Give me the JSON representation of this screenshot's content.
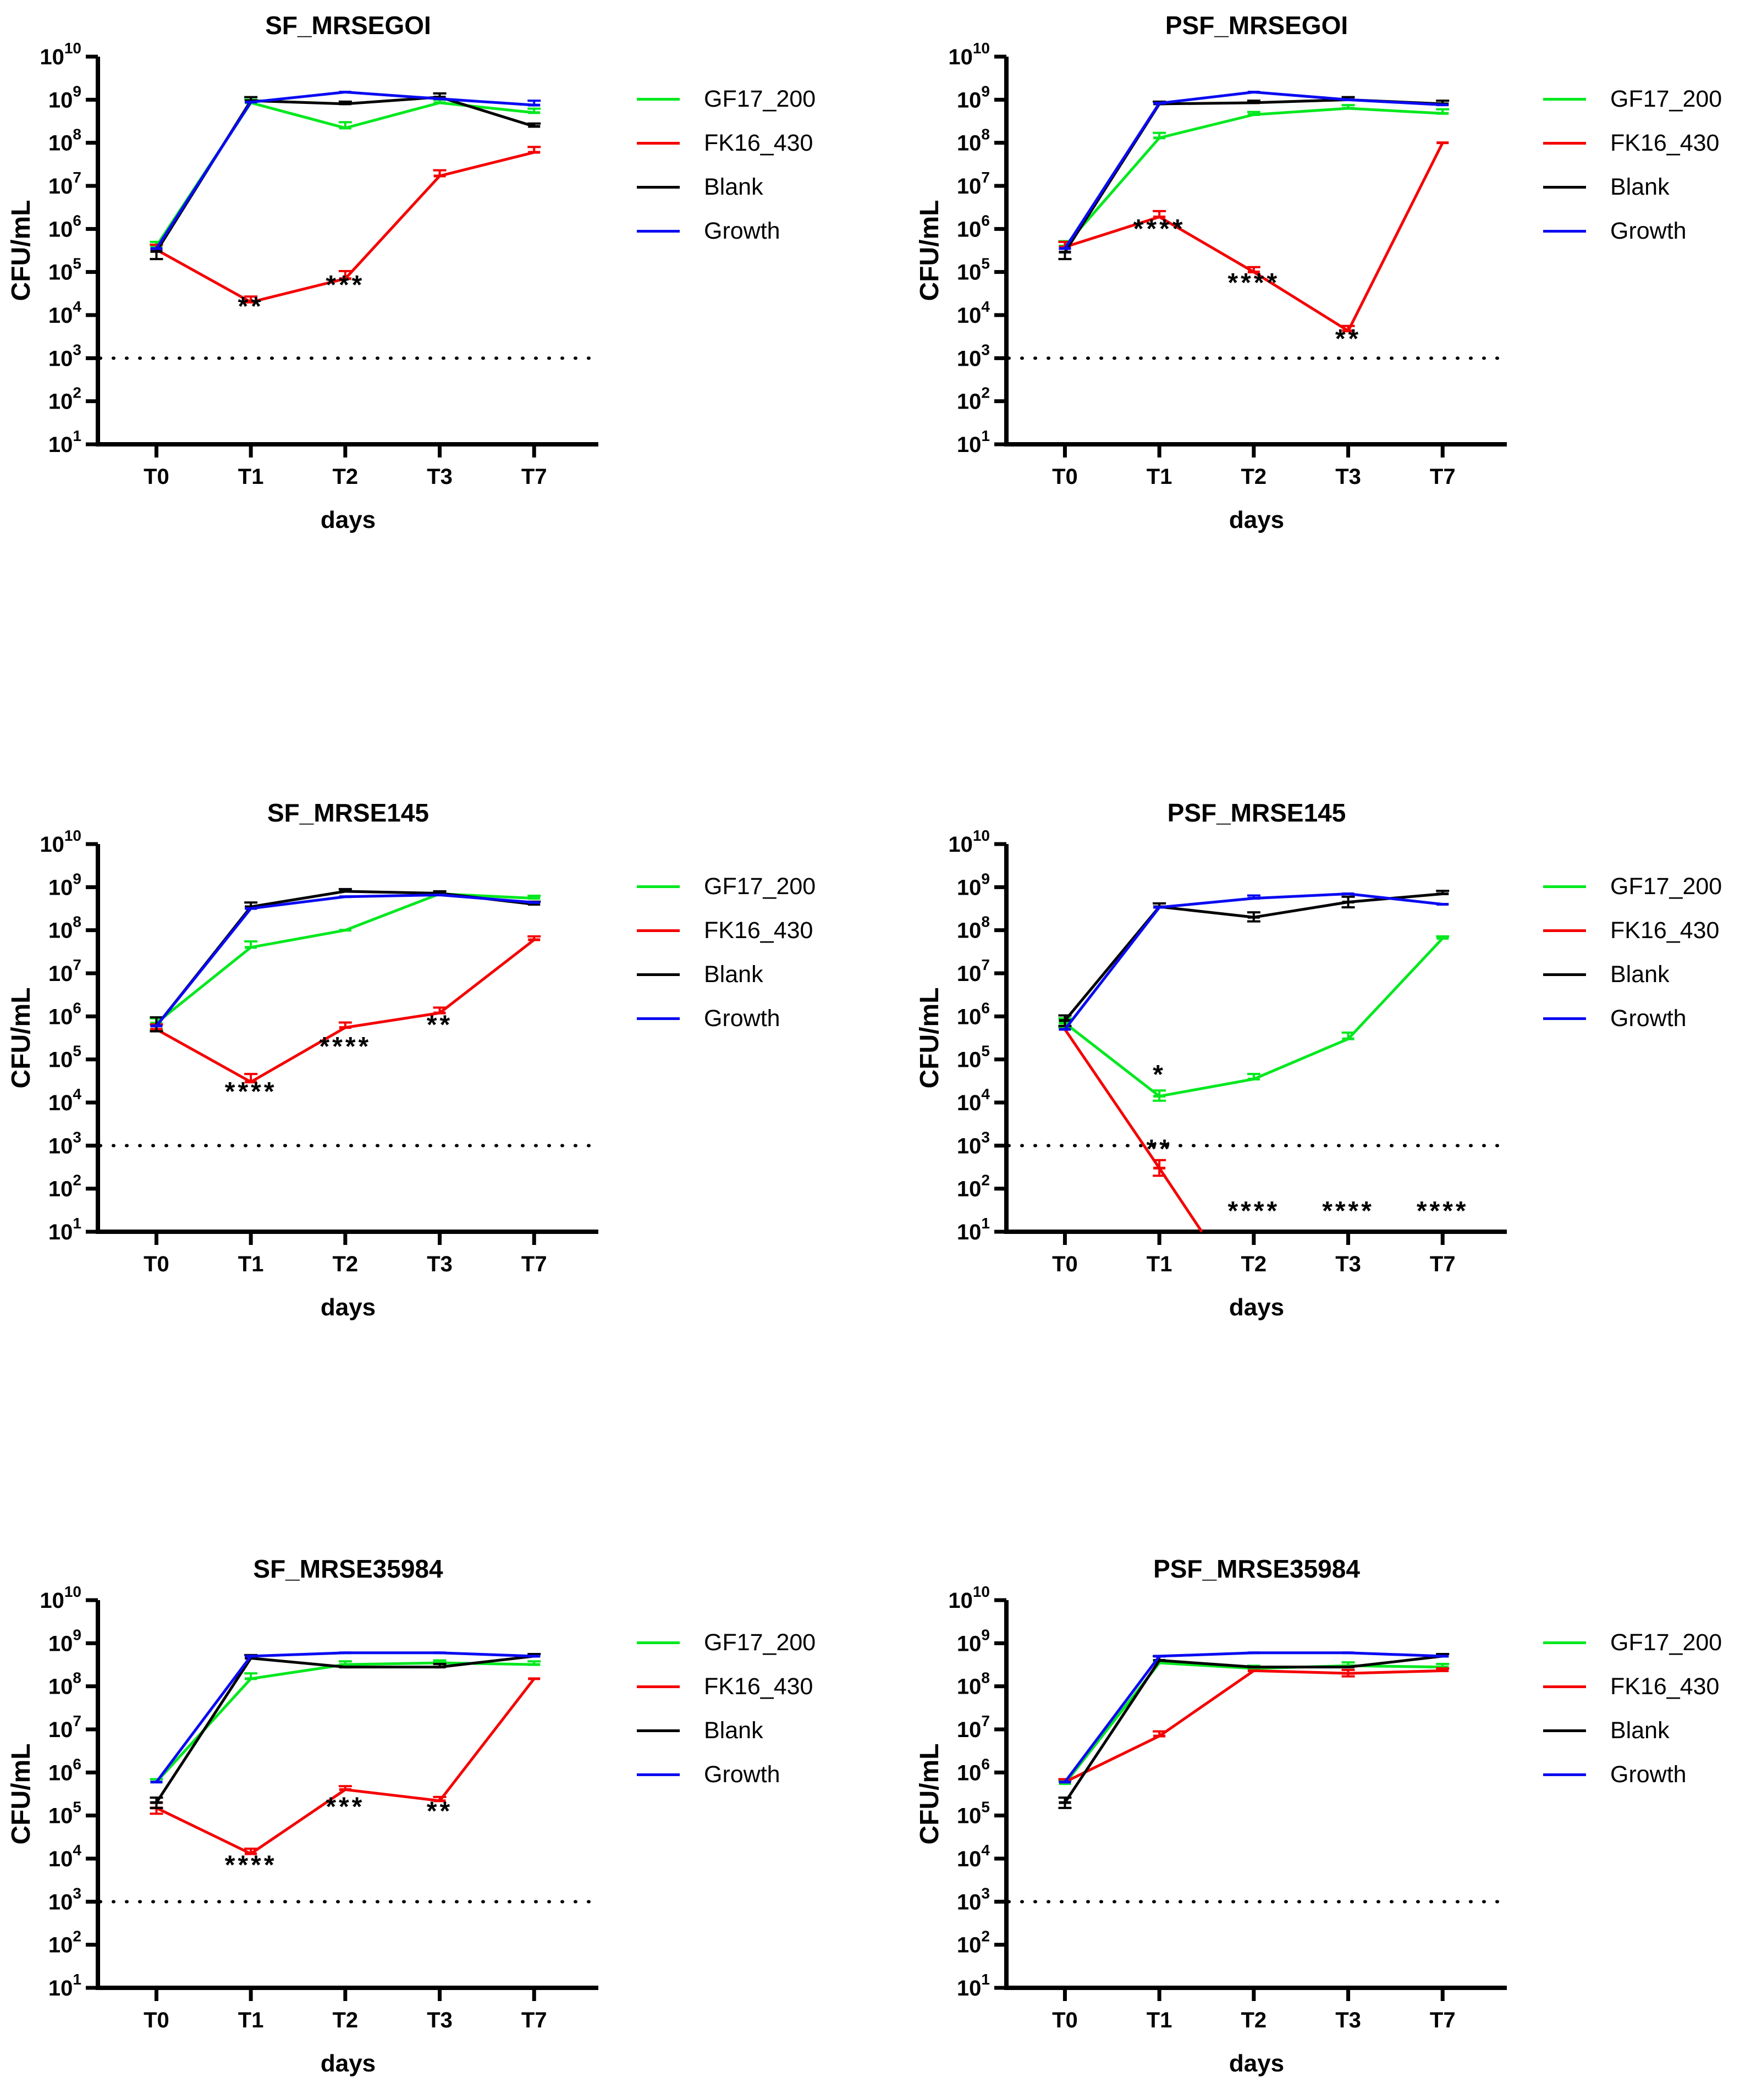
{
  "figure": {
    "x_axis_label": "days",
    "y_axis_label": "CFU/mL",
    "x_ticks": [
      "T0",
      "T1",
      "T2",
      "T3",
      "T7"
    ],
    "y_tick_base": "10",
    "y_tick_exponents": [
      1,
      2,
      3,
      4,
      5,
      6,
      7,
      8,
      9,
      10
    ],
    "ylim": [
      10,
      10000000000
    ],
    "detection_limit": 1000,
    "colors": {
      "GF17_200": "#00e81e",
      "FK16_430": "#f40000",
      "Blank": "#000000",
      "Growth": "#0a0af2"
    },
    "legend": [
      {
        "label": "GF17_200",
        "color": "#00e81e"
      },
      {
        "label": "FK16_430",
        "color": "#f40000"
      },
      {
        "label": "Blank",
        "color": "#000000"
      },
      {
        "label": "Growth",
        "color": "#0a0af2"
      }
    ]
  },
  "chart_data": [
    {
      "type": "line",
      "title": "SF_MRSEGOI",
      "xlabel": "days",
      "ylabel": "CFU/mL",
      "x_categories": [
        "T0",
        "T1",
        "T2",
        "T3",
        "T7"
      ],
      "series": [
        {
          "name": "GF17_200",
          "color": "#00e81e",
          "values": [
            400000.0,
            850000000.0,
            220000000.0,
            850000000.0,
            500000000.0
          ],
          "err_up": [
            500000.0,
            1000000000.0,
            300000000.0,
            1000000000.0,
            620000000.0
          ],
          "err_dn": [
            null,
            null,
            null,
            null,
            null
          ]
        },
        {
          "name": "FK16_430",
          "color": "#f40000",
          "values": [
            330000.0,
            20000.0,
            70000.0,
            17000000.0,
            60000000.0
          ],
          "err_up": [
            430000.0,
            27000.0,
            105000.0,
            23000000.0,
            80000000.0
          ],
          "err_dn": [
            null,
            null,
            null,
            null,
            null
          ]
        },
        {
          "name": "Blank",
          "color": "#000000",
          "values": [
            300000.0,
            950000000.0,
            800000000.0,
            1150000000.0,
            240000000.0
          ],
          "err_up": [
            null,
            1150000000.0,
            900000000.0,
            1400000000.0,
            280000000.0
          ],
          "err_dn": [
            200000.0,
            null,
            null,
            null,
            null
          ]
        },
        {
          "name": "Growth",
          "color": "#0a0af2",
          "values": [
            350000.0,
            880000000.0,
            1500000000.0,
            1050000000.0,
            750000000.0
          ],
          "err_up": [
            null,
            null,
            null,
            null,
            950000000.0
          ],
          "err_dn": [
            null,
            null,
            null,
            null,
            null
          ]
        }
      ],
      "annotations": [
        {
          "x": 1,
          "log_y": 4.0,
          "text": "**"
        },
        {
          "x": 2,
          "log_y": 4.5,
          "text": "***"
        }
      ]
    },
    {
      "type": "line",
      "title": "PSF_MRSEGOI",
      "xlabel": "days",
      "ylabel": "CFU/mL",
      "x_categories": [
        "T0",
        "T1",
        "T2",
        "T3",
        "T7"
      ],
      "series": [
        {
          "name": "GF17_200",
          "color": "#00e81e",
          "values": [
            400000.0,
            130000000.0,
            450000000.0,
            630000000.0,
            480000000.0
          ],
          "err_up": [
            520000.0,
            170000000.0,
            520000000.0,
            750000000.0,
            600000000.0
          ],
          "err_dn": [
            null,
            null,
            null,
            null,
            null
          ]
        },
        {
          "name": "FK16_430",
          "color": "#f40000",
          "values": [
            380000.0,
            1900000.0,
            100000.0,
            4300.0,
            100000000.0
          ],
          "err_up": [
            500000.0,
            2600000.0,
            130000.0,
            5600.0,
            null
          ],
          "err_dn": [
            null,
            null,
            null,
            null,
            null
          ]
        },
        {
          "name": "Blank",
          "color": "#000000",
          "values": [
            290000.0,
            800000000.0,
            850000000.0,
            1000000000.0,
            800000000.0
          ],
          "err_up": [
            null,
            900000000.0,
            950000000.0,
            1150000000.0,
            950000000.0
          ],
          "err_dn": [
            200000.0,
            null,
            null,
            null,
            null
          ]
        },
        {
          "name": "Growth",
          "color": "#0a0af2",
          "values": [
            350000.0,
            830000000.0,
            1500000000.0,
            1000000000.0,
            760000000.0
          ],
          "err_up": [
            null,
            null,
            null,
            null,
            null
          ],
          "err_dn": [
            null,
            null,
            null,
            null,
            null
          ]
        }
      ],
      "annotations": [
        {
          "x": 1,
          "log_y": 5.8,
          "text": "****"
        },
        {
          "x": 2,
          "log_y": 4.55,
          "text": "****"
        },
        {
          "x": 3,
          "log_y": 3.25,
          "text": "**"
        }
      ]
    },
    {
      "type": "line",
      "title": "SF_MRSE145",
      "xlabel": "days",
      "ylabel": "CFU/mL",
      "x_categories": [
        "T0",
        "T1",
        "T2",
        "T3",
        "T7"
      ],
      "series": [
        {
          "name": "GF17_200",
          "color": "#00e81e",
          "values": [
            700000.0,
            40000000.0,
            100000000.0,
            700000000.0,
            550000000.0
          ],
          "err_up": [
            900000.0,
            55000000.0,
            null,
            780000000.0,
            630000000.0
          ],
          "err_dn": [
            500000.0,
            null,
            null,
            null,
            null
          ]
        },
        {
          "name": "FK16_430",
          "color": "#f40000",
          "values": [
            500000.0,
            30000.0,
            550000.0,
            1200000.0,
            60000000.0
          ],
          "err_up": [
            650000.0,
            46000.0,
            720000.0,
            1600000.0,
            72000000.0
          ],
          "err_dn": [
            null,
            null,
            null,
            null,
            null
          ]
        },
        {
          "name": "Blank",
          "color": "#000000",
          "values": [
            600000.0,
            350000000.0,
            800000000.0,
            720000000.0,
            400000000.0
          ],
          "err_up": [
            950000.0,
            440000000.0,
            900000000.0,
            800000000.0,
            460000000.0
          ],
          "err_dn": [
            450000.0,
            null,
            null,
            null,
            null
          ]
        },
        {
          "name": "Growth",
          "color": "#0a0af2",
          "values": [
            600000.0,
            320000000.0,
            600000000.0,
            660000000.0,
            440000000.0
          ],
          "err_up": [
            null,
            null,
            null,
            null,
            null
          ],
          "err_dn": [
            null,
            null,
            null,
            null,
            null
          ]
        }
      ],
      "annotations": [
        {
          "x": 1,
          "log_y": 4.05,
          "text": "****"
        },
        {
          "x": 2,
          "log_y": 5.1,
          "text": "****"
        },
        {
          "x": 3,
          "log_y": 5.6,
          "text": "**"
        }
      ]
    },
    {
      "type": "line",
      "title": "PSF_MRSE145",
      "xlabel": "days",
      "ylabel": "CFU/mL",
      "x_categories": [
        "T0",
        "T1",
        "T2",
        "T3",
        "T7"
      ],
      "series": [
        {
          "name": "GF17_200",
          "color": "#00e81e",
          "values": [
            700000.0,
            14000.0,
            35000.0,
            300000.0,
            65000000.0
          ],
          "err_up": [
            900000.0,
            19000.0,
            46000.0,
            420000.0,
            72000000.0
          ],
          "err_dn": [
            550000.0,
            11000.0,
            null,
            null,
            null
          ]
        },
        {
          "name": "FK16_430",
          "color": "#f40000",
          "x": [
            0,
            1,
            1.45
          ],
          "values": [
            500000.0,
            300.0,
            10
          ],
          "err_up": [
            null,
            460.0,
            null
          ],
          "err_dn": [
            null,
            200.0,
            null
          ]
        },
        {
          "name": "Blank",
          "color": "#000000",
          "values": [
            800000.0,
            350000000.0,
            200000000.0,
            450000000.0,
            700000000.0
          ],
          "err_up": [
            1050000.0,
            420000000.0,
            260000000.0,
            600000000.0,
            820000000.0
          ],
          "err_dn": [
            600000.0,
            null,
            160000000.0,
            340000000.0,
            null
          ]
        },
        {
          "name": "Growth",
          "color": "#0a0af2",
          "values": [
            500000.0,
            340000000.0,
            550000000.0,
            700000000.0,
            400000000.0
          ],
          "err_up": [
            null,
            null,
            640000000.0,
            null,
            null
          ],
          "err_dn": [
            null,
            null,
            null,
            null,
            null
          ]
        }
      ],
      "annotations": [
        {
          "x": 1,
          "log_y": 4.45,
          "text": "*"
        },
        {
          "x": 1,
          "log_y": 2.72,
          "text": "**"
        },
        {
          "x": 2,
          "log_y": 1.28,
          "text": "****"
        },
        {
          "x": 3,
          "log_y": 1.28,
          "text": "****"
        },
        {
          "x": 4,
          "log_y": 1.28,
          "text": "****"
        }
      ]
    },
    {
      "type": "line",
      "title": "SF_MRSE35984",
      "xlabel": "days",
      "ylabel": "CFU/mL",
      "x_categories": [
        "T0",
        "T1",
        "T2",
        "T3",
        "T7"
      ],
      "series": [
        {
          "name": "GF17_200",
          "color": "#00e81e",
          "values": [
            600000.0,
            150000000.0,
            320000000.0,
            350000000.0,
            320000000.0
          ],
          "err_up": [
            700000.0,
            200000000.0,
            380000000.0,
            400000000.0,
            380000000.0
          ],
          "err_dn": [
            null,
            null,
            null,
            null,
            null
          ]
        },
        {
          "name": "FK16_430",
          "color": "#f40000",
          "values": [
            150000.0,
            13000.0,
            400000.0,
            220000.0,
            150000000.0
          ],
          "err_up": [
            200000.0,
            17000.0,
            480000.0,
            270000.0,
            null
          ],
          "err_dn": [
            110000.0,
            null,
            null,
            null,
            null
          ]
        },
        {
          "name": "Blank",
          "color": "#000000",
          "values": [
            200000.0,
            450000000.0,
            280000000.0,
            280000000.0,
            500000000.0
          ],
          "err_up": [
            260000.0,
            530000000.0,
            null,
            330000000.0,
            560000000.0
          ],
          "err_dn": [
            150000.0,
            null,
            null,
            null,
            null
          ]
        },
        {
          "name": "Growth",
          "color": "#0a0af2",
          "values": [
            600000.0,
            500000000.0,
            600000000.0,
            600000000.0,
            500000000.0
          ],
          "err_up": [
            null,
            null,
            null,
            null,
            null
          ],
          "err_dn": [
            null,
            null,
            null,
            null,
            null
          ]
        }
      ],
      "annotations": [
        {
          "x": 1,
          "log_y": 3.65,
          "text": "****"
        },
        {
          "x": 2,
          "log_y": 5.0,
          "text": "***"
        },
        {
          "x": 3,
          "log_y": 4.9,
          "text": "**"
        }
      ]
    },
    {
      "type": "line",
      "title": "PSF_MRSE35984",
      "xlabel": "days",
      "ylabel": "CFU/mL",
      "x_categories": [
        "T0",
        "T1",
        "T2",
        "T3",
        "T7"
      ],
      "series": [
        {
          "name": "GF17_200",
          "color": "#00e81e",
          "values": [
            550000.0,
            350000000.0,
            260000000.0,
            300000000.0,
            280000000.0
          ],
          "err_up": [
            650000.0,
            400000000.0,
            300000000.0,
            360000000.0,
            330000000.0
          ],
          "err_dn": [
            null,
            null,
            null,
            null,
            null
          ]
        },
        {
          "name": "FK16_430",
          "color": "#f40000",
          "values": [
            600000.0,
            7000000.0,
            230000000.0,
            200000000.0,
            230000000.0
          ],
          "err_up": [
            700000.0,
            9000000.0,
            null,
            240000000.0,
            260000000.0
          ],
          "err_dn": [
            null,
            null,
            null,
            170000000.0,
            null
          ]
        },
        {
          "name": "Blank",
          "color": "#000000",
          "values": [
            200000.0,
            400000000.0,
            280000000.0,
            280000000.0,
            500000000.0
          ],
          "err_up": [
            260000.0,
            500000000.0,
            null,
            null,
            560000000.0
          ],
          "err_dn": [
            150000.0,
            null,
            null,
            null,
            null
          ]
        },
        {
          "name": "Growth",
          "color": "#0a0af2",
          "values": [
            600000.0,
            500000000.0,
            600000000.0,
            600000000.0,
            500000000.0
          ],
          "err_up": [
            null,
            null,
            null,
            null,
            null
          ],
          "err_dn": [
            null,
            null,
            null,
            null,
            null
          ]
        }
      ],
      "annotations": []
    }
  ]
}
